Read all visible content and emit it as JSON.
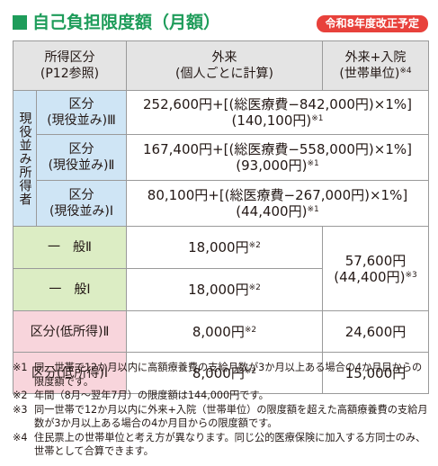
{
  "header": {
    "title": "自己負担限度額（月額）",
    "badge": "令和8年度改正予定"
  },
  "table": {
    "columns": [
      {
        "lines": [
          "所得区分",
          "(P12参照)"
        ]
      },
      {
        "lines": [
          "外来",
          "(個人ごとに計算)"
        ]
      },
      {
        "lines": [
          "外来+入院",
          "(世帯単位)"
        ],
        "sup": "※4"
      }
    ],
    "group": "現役並み所得者",
    "rows": [
      {
        "label": [
          "区分",
          "(現役並み)Ⅲ"
        ],
        "outpatient": {
          "lines": [
            "252,600円+[(総医療費−842,000円)×1%]",
            "(140,100円)"
          ],
          "sup": "※1"
        }
      },
      {
        "label": [
          "区分",
          "(現役並み)Ⅱ"
        ],
        "outpatient": {
          "lines": [
            "167,400円+[(総医療費−558,000円)×1%]",
            "(93,000円)"
          ],
          "sup": "※1"
        }
      },
      {
        "label": [
          "区分",
          "(現役並み)Ⅰ"
        ],
        "outpatient": {
          "lines": [
            "80,100円+[(総医療費−267,000円)×1%]",
            "(44,400円)"
          ],
          "sup": "※1"
        }
      },
      {
        "label": [
          "一　般Ⅱ"
        ],
        "outpatient": {
          "lines": [
            "18,000円"
          ],
          "sup": "※2"
        },
        "household": {
          "lines": [
            "57,600円",
            "(44,400円)"
          ],
          "sup": "※3"
        }
      },
      {
        "label": [
          "一　般Ⅰ"
        ],
        "outpatient": {
          "lines": [
            "18,000円"
          ],
          "sup": "※2"
        }
      },
      {
        "label": [
          "区分(低所得)Ⅱ"
        ],
        "outpatient": {
          "lines": [
            "8,000円"
          ],
          "sup": "※2"
        },
        "household": {
          "lines": [
            "24,600円"
          ]
        }
      },
      {
        "label": [
          "区分(低所得)Ⅰ"
        ],
        "outpatient": {
          "lines": [
            "8,000円"
          ],
          "sup": "※2"
        },
        "household": {
          "lines": [
            "15,000円"
          ]
        }
      }
    ]
  },
  "notes": [
    {
      "mark": "※1",
      "text": "同一世帯で12か月以内に高額療養費の支給月数が3か月以上ある場合の4か月目からの限度額です。"
    },
    {
      "mark": "※2",
      "text": "年間（8月～翌年7月）の限度額は144,000円です。"
    },
    {
      "mark": "※3",
      "text": "同一世帯で12か月以内に外来+入院（世帯単位）の限度額を超えた高額療養費の支給月数が3か月以上ある場合の4か月目からの限度額です。"
    },
    {
      "mark": "※4",
      "text": "住民票上の世帯単位と考え方が異なります。同じ公的医療保険に加入する方同士のみ、世帯として合算できます。"
    }
  ]
}
